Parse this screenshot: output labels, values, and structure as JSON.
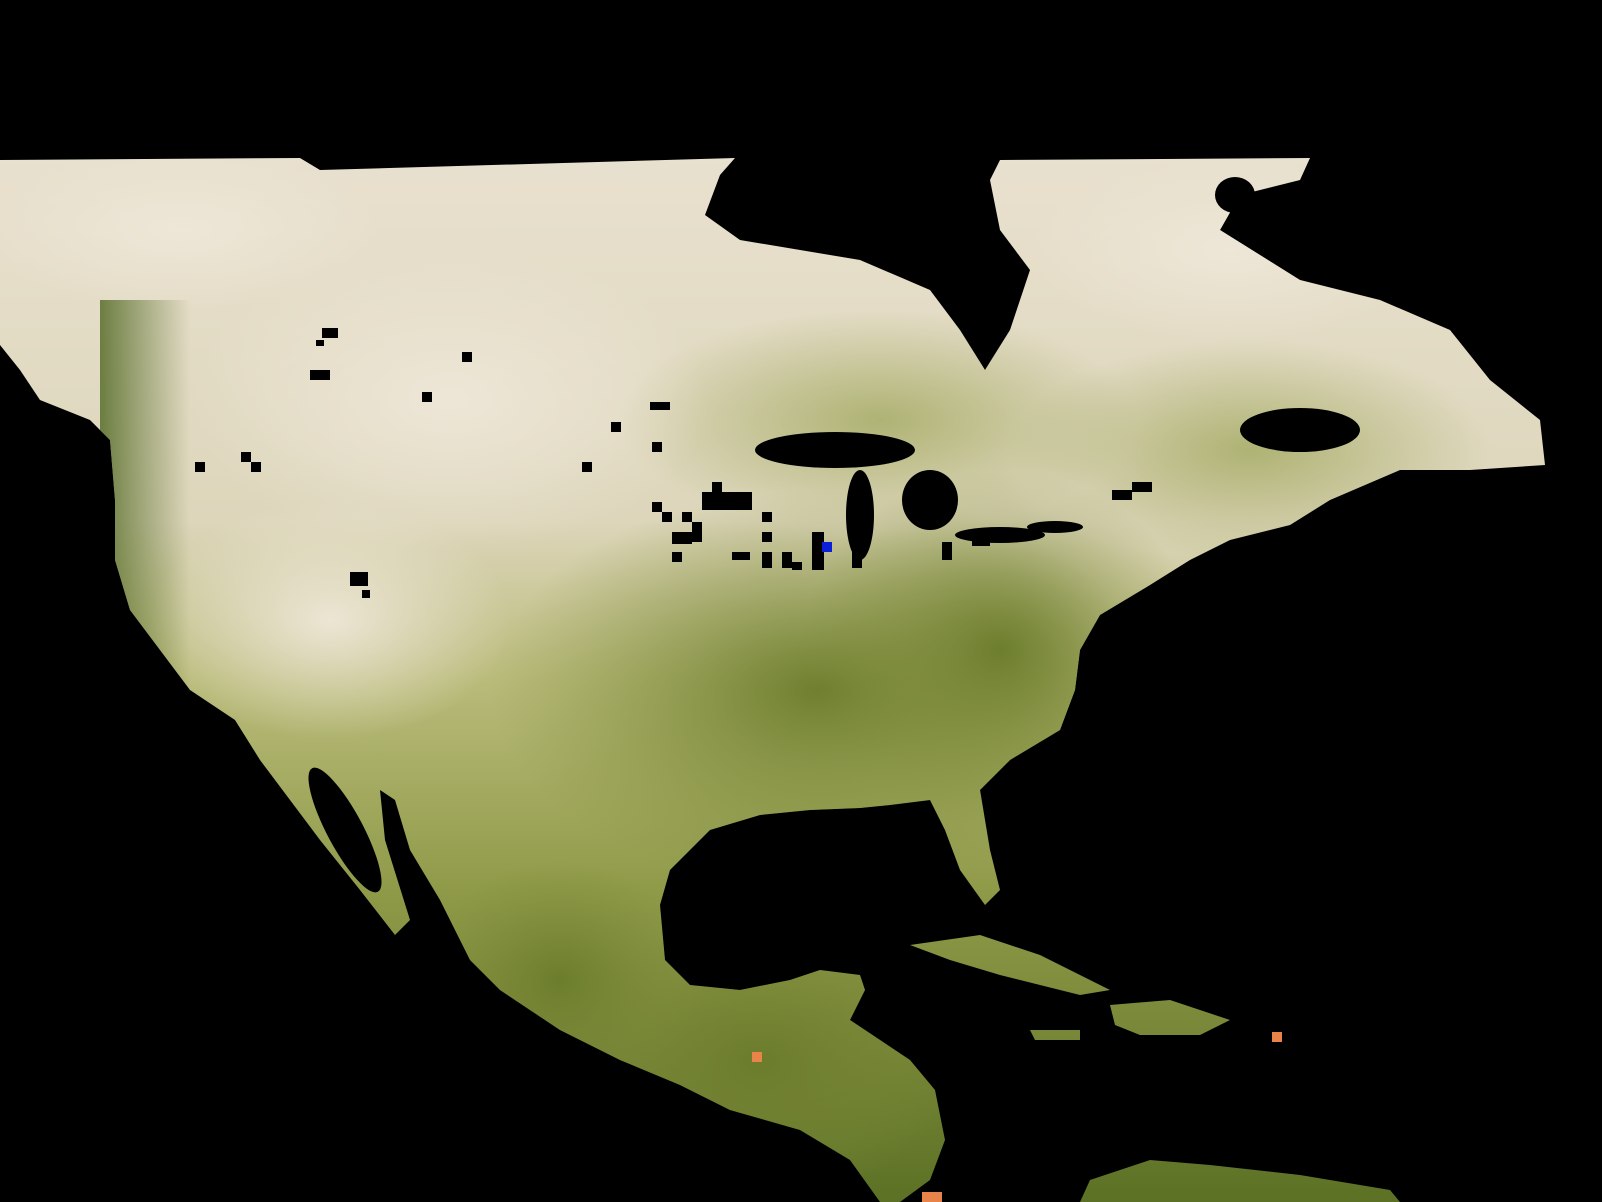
{
  "map": {
    "region": "North America",
    "projection": "equirectangular",
    "background_color": "#000000",
    "colors": {
      "ocean": "#000000",
      "land_sparse_vegetation": "#e6dccb",
      "land_light": "#d8d2b0",
      "land_moderate_vegetation": "#a9ad63",
      "land_dense_vegetation": "#6d7f2b",
      "land_very_dense_vegetation": "#4c6220",
      "no_data_cell": "#000000",
      "highlight_cell_blue": "#0a1fd6",
      "highlight_cell_orange": "#e8834a"
    },
    "cell_counts": {
      "no_data": 34,
      "blue": 1,
      "orange": 3
    }
  }
}
